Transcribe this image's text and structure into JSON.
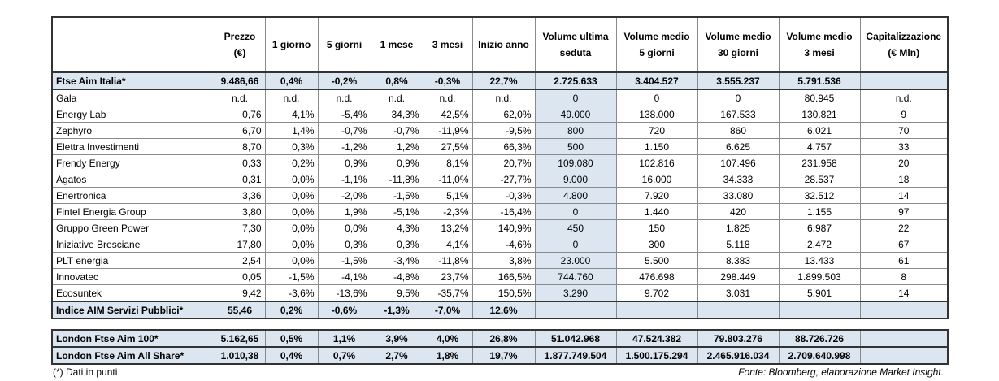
{
  "header": {
    "columns": [
      [
        "Prezzo",
        "(€)"
      ],
      [
        "1 giorno"
      ],
      [
        "5 giorni"
      ],
      [
        "1 mese"
      ],
      [
        "3 mesi"
      ],
      [
        "Inizio anno"
      ],
      [
        "Volume ultima",
        "seduta"
      ],
      [
        "Volume medio",
        "5 giorni"
      ],
      [
        "Volume medio",
        "30 giorni"
      ],
      [
        "Volume medio",
        "3 mesi"
      ],
      [
        "Capitalizzazione",
        "(€ Mln)"
      ]
    ]
  },
  "table": {
    "rows": [
      {
        "name": "Ftse Aim Italia*",
        "bold": true,
        "cells": [
          "9.486,66",
          "0,4%",
          "-0,2%",
          "0,8%",
          "-0,3%",
          "22,7%",
          "2.725.633",
          "3.404.527",
          "3.555.237",
          "5.791.536"
        ]
      },
      {
        "name": "Gala",
        "cells": [
          "n.d.",
          "n.d.",
          "n.d.",
          "n.d.",
          "n.d.",
          "n.d.",
          "0",
          "0",
          "0",
          "80.945",
          "n.d."
        ]
      },
      {
        "name": "Energy Lab",
        "cells": [
          "0,76",
          "4,1%",
          "-5,4%",
          "34,3%",
          "42,5%",
          "62,0%",
          "49.000",
          "138.000",
          "167.533",
          "130.821",
          "9"
        ]
      },
      {
        "name": "Zephyro",
        "cells": [
          "6,70",
          "1,4%",
          "-0,7%",
          "-0,7%",
          "-11,9%",
          "-9,5%",
          "800",
          "720",
          "860",
          "6.021",
          "70"
        ]
      },
      {
        "name": "Elettra Investimenti",
        "cells": [
          "8,70",
          "0,3%",
          "-1,2%",
          "1,2%",
          "27,5%",
          "66,3%",
          "500",
          "1.150",
          "6.625",
          "4.757",
          "33"
        ]
      },
      {
        "name": "Frendy Energy",
        "cells": [
          "0,33",
          "0,2%",
          "0,9%",
          "0,9%",
          "8,1%",
          "20,7%",
          "109.080",
          "102.816",
          "107.496",
          "231.958",
          "20"
        ]
      },
      {
        "name": "Agatos",
        "cells": [
          "0,31",
          "0,0%",
          "-1,1%",
          "-11,8%",
          "-11,0%",
          "-27,7%",
          "9.000",
          "16.000",
          "34.333",
          "28.537",
          "18"
        ]
      },
      {
        "name": "Enertronica",
        "cells": [
          "3,36",
          "0,0%",
          "-2,0%",
          "-1,5%",
          "5,1%",
          "-0,3%",
          "4.800",
          "7.920",
          "33.080",
          "32.512",
          "14"
        ]
      },
      {
        "name": "Fintel Energia Group",
        "cells": [
          "3,80",
          "0,0%",
          "1,9%",
          "-5,1%",
          "-2,3%",
          "-16,4%",
          "0",
          "1.440",
          "420",
          "1.155",
          "97"
        ]
      },
      {
        "name": "Gruppo Green Power",
        "cells": [
          "7,30",
          "0,0%",
          "0,0%",
          "4,3%",
          "13,2%",
          "140,9%",
          "450",
          "150",
          "1.825",
          "6.987",
          "22"
        ]
      },
      {
        "name": "Iniziative Bresciane",
        "cells": [
          "17,80",
          "0,0%",
          "0,3%",
          "0,3%",
          "4,1%",
          "-4,6%",
          "0",
          "300",
          "5.118",
          "2.472",
          "67"
        ]
      },
      {
        "name": "PLT energia",
        "cells": [
          "2,54",
          "0,0%",
          "-1,5%",
          "-3,4%",
          "-11,8%",
          "3,8%",
          "23.000",
          "5.500",
          "8.383",
          "13.433",
          "61"
        ]
      },
      {
        "name": "Innovatec",
        "cells": [
          "0,05",
          "-1,5%",
          "-4,1%",
          "-4,8%",
          "23,7%",
          "166,5%",
          "744.760",
          "476.698",
          "298.449",
          "1.899.503",
          "8"
        ]
      },
      {
        "name": "Ecosuntek",
        "cells": [
          "9,42",
          "-3,6%",
          "-13,6%",
          "9,5%",
          "-35,7%",
          "150,5%",
          "3.290",
          "9.702",
          "3.031",
          "5.901",
          "14"
        ]
      },
      {
        "name": "Indice AIM Servizi Pubblici*",
        "bold": true,
        "cells": [
          "55,46",
          "0,2%",
          "-0,6%",
          "-1,3%",
          "-7,0%",
          "12,6%"
        ]
      }
    ]
  },
  "summary": {
    "rows": [
      {
        "name": "London Ftse Aim 100*",
        "bold": true,
        "cells": [
          "5.162,65",
          "0,5%",
          "1,1%",
          "3,9%",
          "4,0%",
          "26,8%",
          "51.042.968",
          "47.524.382",
          "79.803.276",
          "88.726.726"
        ]
      },
      {
        "name": "London Ftse Aim All Share*",
        "bold": true,
        "cells": [
          "1.010,38",
          "0,4%",
          "0,7%",
          "2,7%",
          "1,8%",
          "19,7%",
          "1.877.749.504",
          "1.500.175.294",
          "2.465.916.034",
          "2.709.640.998"
        ]
      }
    ]
  },
  "footer": {
    "note": "(*) Dati in punti",
    "source": "Fonte: Bloomberg, elaborazione Market Insight."
  }
}
